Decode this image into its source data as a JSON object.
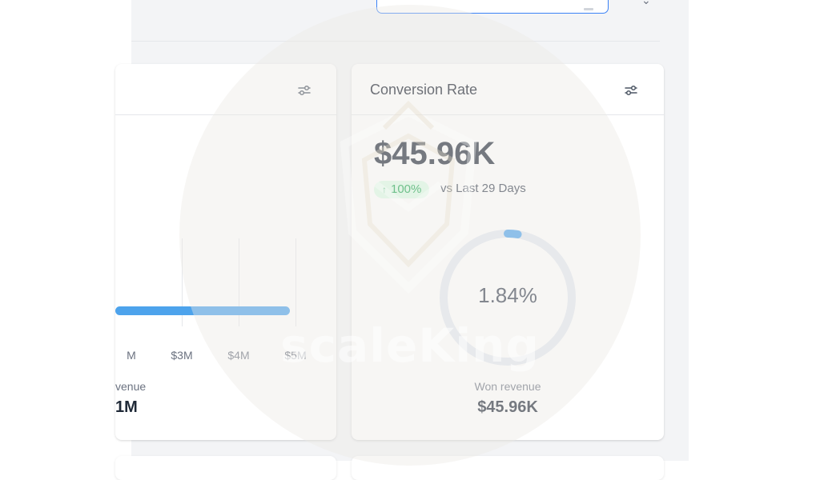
{
  "header": {
    "input_value": "",
    "icons": [
      "chevron-icon"
    ]
  },
  "left_card": {
    "filter_icon": "filter-sliders-icon",
    "chart_data": {
      "type": "bar",
      "orientation": "horizontal",
      "x_ticks": [
        "M",
        "$3M",
        "$4M",
        "$5M"
      ],
      "values": [
        5.0
      ],
      "color": "#4da3ec"
    },
    "metric_label": "venue",
    "metric_value": "1M"
  },
  "right_card": {
    "title": "Conversion Rate",
    "filter_icon": "filter-sliders-icon",
    "value": "$45.96K",
    "badge": {
      "arrow": "↑",
      "text": "100%",
      "color": "#16a34a",
      "bg": "#dcfce7"
    },
    "compare_text": "vs Last 29 Days",
    "donut": {
      "percent": "1.84%",
      "fraction": 0.0184,
      "track_color": "#e3e8f1",
      "fill_color": "#4da3ec"
    },
    "won_label": "Won revenue",
    "won_value": "$45.96K"
  },
  "watermark": {
    "text": "scaleKing"
  },
  "colors": {
    "accent": "#3b82f6",
    "bar": "#4da3ec",
    "background": "#f3f4f6"
  }
}
